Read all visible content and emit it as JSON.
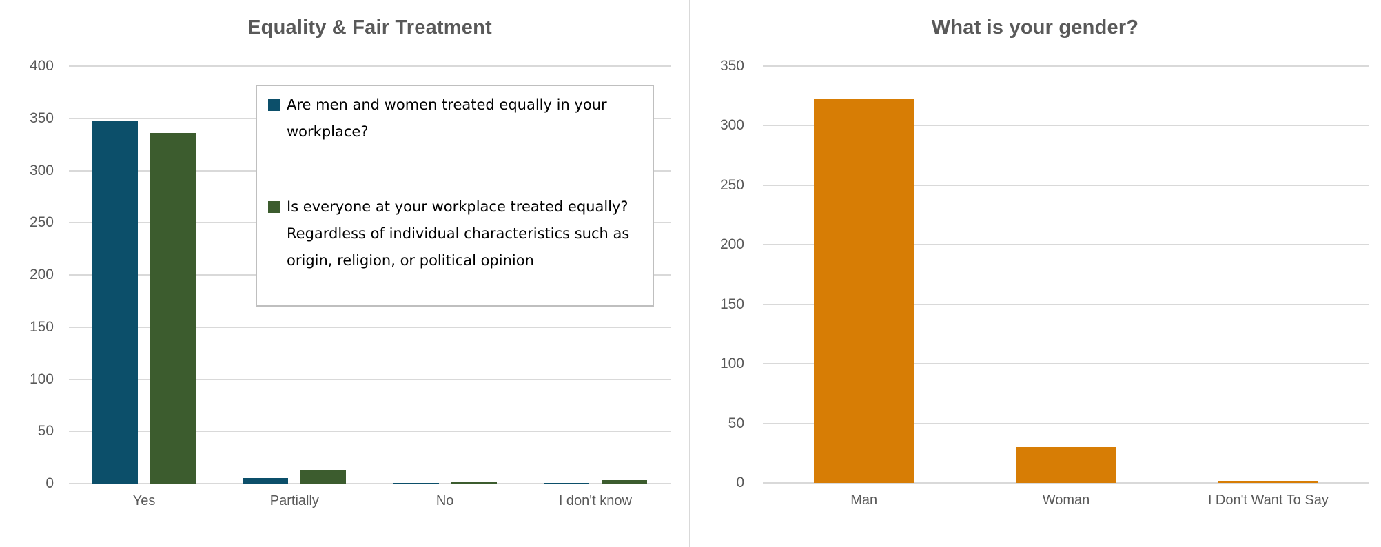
{
  "colors": {
    "background": "#FFFFFF",
    "title_text": "#595959",
    "axis_text": "#595959",
    "gridline": "#D9D9D9",
    "divider": "#D9D9D9",
    "legend_border": "#BFBFBF",
    "legend_text": "#000000",
    "series_blue": "#0C4F6A",
    "series_green": "#3C5C2E",
    "series_orange": "#D77D05"
  },
  "chart_data": [
    {
      "type": "bar",
      "title": "Equality & Fair Treatment",
      "categories": [
        "Yes",
        "Partially",
        "No",
        "I don't know"
      ],
      "series": [
        {
          "name": "Are men and women treated equally in your workplace?",
          "color": "#0C4F6A",
          "values": [
            347,
            5,
            1,
            1
          ]
        },
        {
          "name": "Is everyone at your workplace treated equally? Regardless of individual characteristics such as origin, religion, or political opinion",
          "color": "#3C5C2E",
          "values": [
            336,
            13,
            2,
            3
          ]
        }
      ],
      "xlabel": "",
      "ylabel": "",
      "ylim": [
        0,
        400
      ],
      "yticks": [
        400,
        350,
        300,
        250,
        200,
        150,
        100,
        50,
        0
      ],
      "grid": true,
      "legend_position": "inside-upper-right"
    },
    {
      "type": "bar",
      "title": "What is your gender?",
      "categories": [
        "Man",
        "Woman",
        "I Don't Want To Say"
      ],
      "series": [
        {
          "name": "",
          "color": "#D77D05",
          "values": [
            322,
            30,
            2
          ]
        }
      ],
      "xlabel": "",
      "ylabel": "",
      "ylim": [
        0,
        350
      ],
      "yticks": [
        350,
        300,
        250,
        200,
        150,
        100,
        50,
        0
      ],
      "grid": true,
      "legend_position": "none"
    }
  ]
}
